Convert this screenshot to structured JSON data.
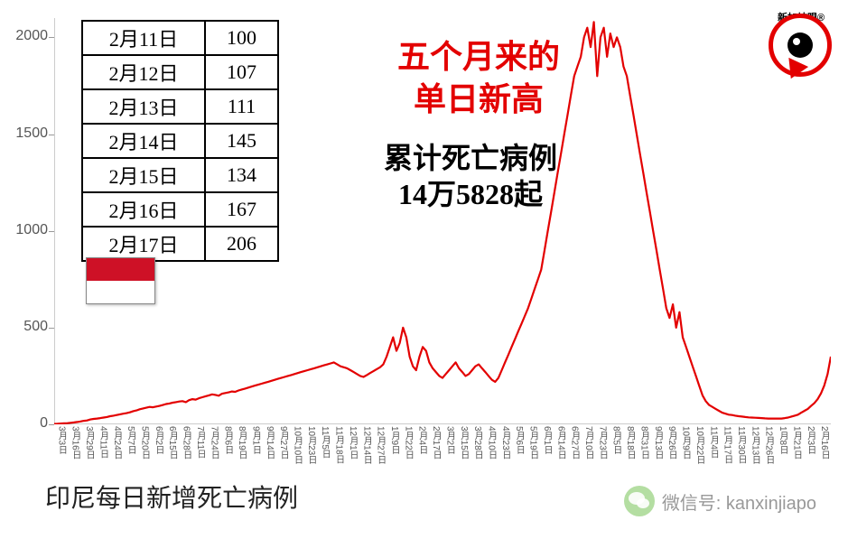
{
  "chart": {
    "type": "line",
    "title": "印尼每日新增死亡病例",
    "line_color": "#e30000",
    "line_width": 2.2,
    "background_color": "#ffffff",
    "ylim": [
      0,
      2100
    ],
    "yticks": [
      0,
      500,
      1000,
      1500,
      2000
    ],
    "xlabels": [
      "3月3日",
      "3月16日",
      "3月29日",
      "4月11日",
      "4月24日",
      "5月7日",
      "5月20日",
      "6月2日",
      "6月15日",
      "6月28日",
      "7月11日",
      "7月24日",
      "8月6日",
      "8月19日",
      "9月1日",
      "9月14日",
      "9月27日",
      "10月10日",
      "10月23日",
      "11月5日",
      "11月18日",
      "12月1日",
      "12月14日",
      "12月27日",
      "1月9日",
      "1月22日",
      "2月4日",
      "2月17日",
      "3月2日",
      "3月15日",
      "3月28日",
      "4月10日",
      "4月23日",
      "5月6日",
      "5月19日",
      "6月1日",
      "6月14日",
      "6月27日",
      "7月10日",
      "7月23日",
      "8月5日",
      "8月18日",
      "8月31日",
      "9月13日",
      "9月26日",
      "10月9日",
      "10月22日",
      "11月4日",
      "11月17日",
      "11月30日",
      "12月13日",
      "12月26日",
      "1月8日",
      "1月21日",
      "2月3日",
      "2月16日"
    ],
    "values": [
      2,
      3,
      4,
      5,
      6,
      8,
      10,
      12,
      15,
      18,
      20,
      25,
      28,
      30,
      32,
      35,
      38,
      42,
      45,
      48,
      52,
      55,
      58,
      62,
      68,
      72,
      78,
      82,
      86,
      90,
      88,
      92,
      95,
      100,
      105,
      108,
      112,
      115,
      118,
      120,
      115,
      125,
      130,
      128,
      135,
      140,
      145,
      150,
      155,
      152,
      148,
      158,
      162,
      165,
      170,
      168,
      175,
      180,
      185,
      190,
      195,
      200,
      205,
      210,
      215,
      220,
      225,
      230,
      235,
      240,
      245,
      250,
      255,
      260,
      265,
      270,
      275,
      280,
      285,
      290,
      295,
      300,
      305,
      310,
      315,
      320,
      310,
      300,
      295,
      290,
      280,
      270,
      260,
      250,
      245,
      255,
      265,
      275,
      285,
      295,
      310,
      350,
      400,
      450,
      380,
      420,
      500,
      450,
      350,
      300,
      280,
      350,
      400,
      380,
      320,
      290,
      270,
      250,
      240,
      260,
      280,
      300,
      320,
      290,
      270,
      250,
      260,
      280,
      300,
      310,
      290,
      270,
      250,
      230,
      220,
      240,
      280,
      320,
      360,
      400,
      440,
      480,
      520,
      560,
      600,
      650,
      700,
      750,
      800,
      900,
      1000,
      1100,
      1200,
      1300,
      1400,
      1500,
      1600,
      1700,
      1800,
      1850,
      1900,
      2000,
      2050,
      1950,
      2080,
      1800,
      2000,
      2050,
      1900,
      2020,
      1950,
      2000,
      1950,
      1850,
      1800,
      1700,
      1600,
      1500,
      1400,
      1300,
      1200,
      1100,
      1000,
      900,
      800,
      700,
      600,
      550,
      620,
      500,
      580,
      450,
      400,
      350,
      300,
      250,
      200,
      150,
      120,
      100,
      90,
      80,
      70,
      60,
      55,
      50,
      48,
      45,
      42,
      40,
      38,
      36,
      35,
      34,
      33,
      32,
      31,
      30,
      30,
      30,
      30,
      30,
      32,
      35,
      40,
      45,
      50,
      60,
      70,
      80,
      95,
      110,
      130,
      160,
      200,
      260,
      350
    ]
  },
  "table": {
    "rows": [
      {
        "date": "2月11日",
        "value": "100"
      },
      {
        "date": "2月12日",
        "value": "107"
      },
      {
        "date": "2月13日",
        "value": "111"
      },
      {
        "date": "2月14日",
        "value": "145"
      },
      {
        "date": "2月15日",
        "value": "134"
      },
      {
        "date": "2月16日",
        "value": "167"
      },
      {
        "date": "2月17日",
        "value": "206"
      }
    ]
  },
  "headline": {
    "red_line1": "五个月来的",
    "red_line2": "单日新高",
    "black_line1": "累计死亡病例",
    "black_line2": "14万5828起"
  },
  "flag": {
    "top_color": "#ce1126",
    "bottom_color": "#ffffff",
    "country": "indonesia"
  },
  "logo": {
    "text": "新加坡眼®",
    "color": "#e30000"
  },
  "wechat": {
    "label": "微信号: kanxinjiapo"
  }
}
